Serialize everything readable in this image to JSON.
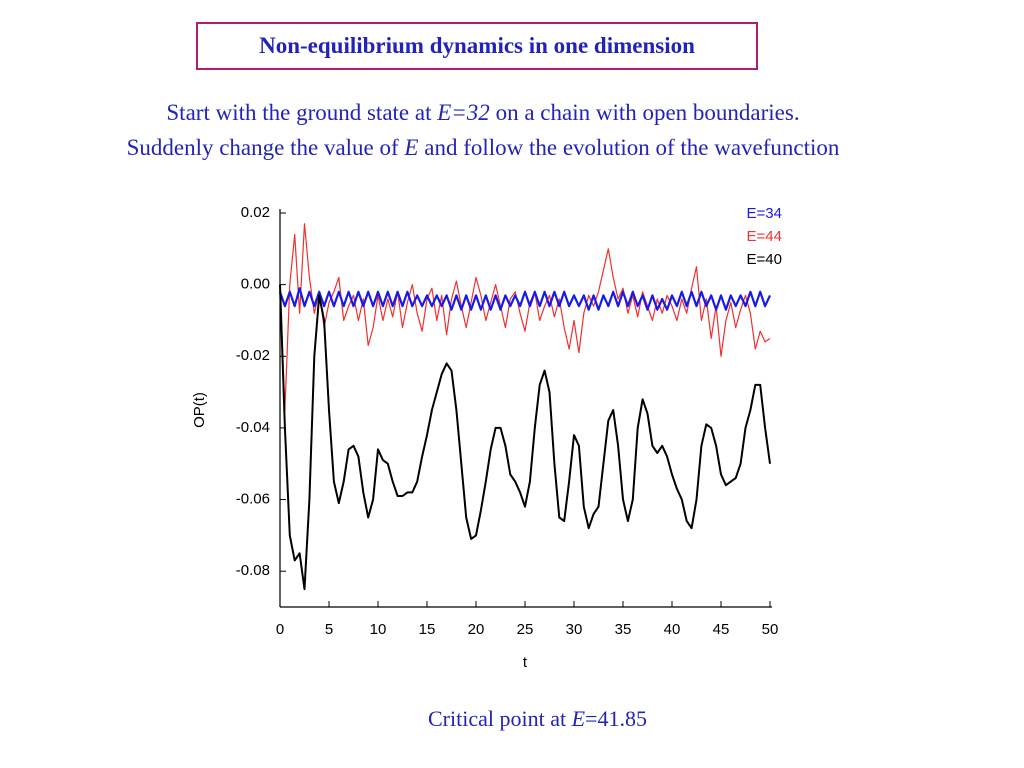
{
  "slide": {
    "title": "Non-equilibrium dynamics in one dimension",
    "intro": [
      [
        "Start with the ground state at ",
        "E=32",
        " on a chain with open boundaries."
      ],
      [
        "Suddenly change the value of ",
        "E",
        " and follow the evolution of the wavefunction"
      ]
    ],
    "footer": [
      "Critical point at ",
      "E",
      "=41.85"
    ]
  },
  "chart_data": {
    "type": "line",
    "xlabel": "t",
    "ylabel": "OP(t)",
    "xlim": [
      0,
      50
    ],
    "ylim": [
      -0.09,
      0.02
    ],
    "xticks": [
      0,
      5,
      10,
      15,
      20,
      25,
      30,
      35,
      40,
      45,
      50
    ],
    "yticks": [
      0.02,
      {
        "value": 0,
        "label": "0.00"
      },
      -0.02,
      -0.04,
      -0.06,
      -0.08
    ],
    "x": [
      0,
      0.5,
      1,
      1.5,
      2,
      2.5,
      3,
      3.5,
      4,
      4.5,
      5,
      5.5,
      6,
      6.5,
      7,
      7.5,
      8,
      8.5,
      9,
      9.5,
      10,
      10.5,
      11,
      11.5,
      12,
      12.5,
      13,
      13.5,
      14,
      14.5,
      15,
      15.5,
      16,
      16.5,
      17,
      17.5,
      18,
      18.5,
      19,
      19.5,
      20,
      20.5,
      21,
      21.5,
      22,
      22.5,
      23,
      23.5,
      24,
      24.5,
      25,
      25.5,
      26,
      26.5,
      27,
      27.5,
      28,
      28.5,
      29,
      29.5,
      30,
      30.5,
      31,
      31.5,
      32,
      32.5,
      33,
      33.5,
      34,
      34.5,
      35,
      35.5,
      36,
      36.5,
      37,
      37.5,
      38,
      38.5,
      39,
      39.5,
      40,
      40.5,
      41,
      41.5,
      42,
      42.5,
      43,
      43.5,
      44,
      44.5,
      45,
      45.5,
      46,
      46.5,
      47,
      47.5,
      48,
      48.5,
      49,
      49.5,
      50
    ],
    "series": [
      {
        "name": "E=34",
        "color": "#1a1ae6",
        "values": [
          -0.002,
          -0.006,
          -0.002,
          -0.006,
          -0.001,
          -0.006,
          -0.002,
          -0.006,
          -0.002,
          -0.006,
          -0.002,
          -0.006,
          -0.002,
          -0.006,
          -0.002,
          -0.006,
          -0.002,
          -0.006,
          -0.002,
          -0.006,
          -0.002,
          -0.006,
          -0.002,
          -0.006,
          -0.002,
          -0.006,
          -0.002,
          -0.006,
          -0.003,
          -0.006,
          -0.003,
          -0.006,
          -0.003,
          -0.006,
          -0.003,
          -0.007,
          -0.003,
          -0.007,
          -0.003,
          -0.007,
          -0.003,
          -0.007,
          -0.003,
          -0.007,
          -0.003,
          -0.007,
          -0.003,
          -0.006,
          -0.003,
          -0.006,
          -0.002,
          -0.006,
          -0.002,
          -0.006,
          -0.002,
          -0.006,
          -0.002,
          -0.006,
          -0.002,
          -0.006,
          -0.003,
          -0.006,
          -0.003,
          -0.007,
          -0.003,
          -0.007,
          -0.003,
          -0.006,
          -0.002,
          -0.006,
          -0.002,
          -0.006,
          -0.002,
          -0.006,
          -0.003,
          -0.007,
          -0.003,
          -0.007,
          -0.004,
          -0.007,
          -0.003,
          -0.006,
          -0.002,
          -0.006,
          -0.002,
          -0.006,
          -0.002,
          -0.006,
          -0.003,
          -0.007,
          -0.003,
          -0.007,
          -0.003,
          -0.006,
          -0.003,
          -0.006,
          -0.002,
          -0.006,
          -0.002,
          -0.006,
          -0.003
        ]
      },
      {
        "name": "E=44",
        "color": "#f03030",
        "values": [
          0,
          -0.035,
          0,
          0.014,
          -0.008,
          0.017,
          0.002,
          -0.008,
          -0.002,
          -0.012,
          -0.005,
          -0.002,
          0.002,
          -0.01,
          -0.006,
          -0.003,
          -0.01,
          -0.004,
          -0.017,
          -0.012,
          -0.003,
          -0.01,
          -0.004,
          -0.009,
          -0.002,
          -0.012,
          -0.005,
          0,
          -0.008,
          -0.013,
          -0.004,
          -0.001,
          -0.01,
          -0.003,
          -0.014,
          -0.004,
          0.001,
          -0.006,
          -0.012,
          -0.005,
          0.002,
          -0.003,
          -0.01,
          -0.005,
          0,
          -0.006,
          -0.012,
          -0.004,
          -0.002,
          -0.008,
          -0.013,
          -0.005,
          -0.002,
          -0.01,
          -0.006,
          -0.003,
          -0.009,
          -0.004,
          -0.012,
          -0.018,
          -0.01,
          -0.019,
          -0.008,
          -0.003,
          -0.006,
          -0.002,
          0.004,
          0.01,
          0.002,
          -0.004,
          -0.001,
          -0.008,
          -0.003,
          -0.009,
          -0.002,
          -0.006,
          -0.01,
          -0.004,
          -0.008,
          -0.003,
          -0.006,
          -0.01,
          -0.004,
          -0.008,
          -0.001,
          0.005,
          -0.01,
          -0.004,
          -0.015,
          -0.006,
          -0.02,
          -0.01,
          -0.005,
          -0.012,
          -0.007,
          -0.003,
          -0.008,
          -0.018,
          -0.013,
          -0.016,
          -0.015
        ]
      },
      {
        "name": "E=40",
        "color": "#000000",
        "values": [
          0,
          -0.04,
          -0.07,
          -0.077,
          -0.075,
          -0.085,
          -0.06,
          -0.02,
          -0.003,
          -0.01,
          -0.035,
          -0.055,
          -0.061,
          -0.055,
          -0.046,
          -0.045,
          -0.048,
          -0.058,
          -0.065,
          -0.06,
          -0.046,
          -0.049,
          -0.05,
          -0.055,
          -0.059,
          -0.059,
          -0.058,
          -0.058,
          -0.055,
          -0.048,
          -0.042,
          -0.035,
          -0.03,
          -0.025,
          -0.022,
          -0.024,
          -0.035,
          -0.05,
          -0.065,
          -0.071,
          -0.07,
          -0.063,
          -0.055,
          -0.046,
          -0.04,
          -0.04,
          -0.045,
          -0.053,
          -0.055,
          -0.058,
          -0.062,
          -0.055,
          -0.04,
          -0.028,
          -0.024,
          -0.03,
          -0.05,
          -0.065,
          -0.066,
          -0.055,
          -0.042,
          -0.045,
          -0.062,
          -0.068,
          -0.064,
          -0.062,
          -0.05,
          -0.038,
          -0.035,
          -0.045,
          -0.06,
          -0.066,
          -0.06,
          -0.04,
          -0.032,
          -0.036,
          -0.045,
          -0.047,
          -0.045,
          -0.048,
          -0.053,
          -0.057,
          -0.06,
          -0.066,
          -0.068,
          -0.06,
          -0.045,
          -0.039,
          -0.04,
          -0.045,
          -0.053,
          -0.056,
          -0.055,
          -0.054,
          -0.05,
          -0.04,
          -0.035,
          -0.028,
          -0.028,
          -0.04,
          -0.05
        ]
      }
    ]
  }
}
